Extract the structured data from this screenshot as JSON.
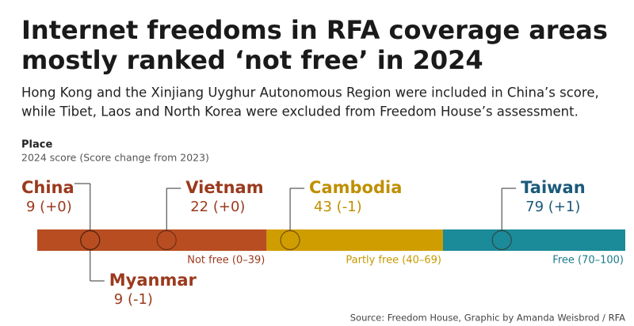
{
  "chart_data": {
    "type": "scale",
    "title": [
      "Internet freedoms in RFA coverage areas",
      "mostly ranked ‘not free’ in 2024"
    ],
    "subtitle": [
      "Hong Kong and the Xinjiang Uyghur Autonomous Region were included in China’s score,",
      "while Tibet, Laos and North Korea were excluded from Freedom House’s assessment."
    ],
    "key_name": "Place",
    "key_value": "2024 score (Score change from 2023)",
    "xlim": [
      0,
      100
    ],
    "bands": [
      {
        "name": "Not free (0–39)",
        "end": 39,
        "color": "#b84d22",
        "text_color": "#9b3a1e"
      },
      {
        "name": "Partly free (40–69)",
        "end": 69,
        "color": "#d09d00",
        "text_color": "#c49a00"
      },
      {
        "name": "Free (70–100)",
        "end": 100,
        "color": "#1b8a99",
        "text_color": "#1b7a8a"
      }
    ],
    "categories": [
      "China",
      "Myanmar",
      "Vietnam",
      "Cambodia",
      "Taiwan"
    ],
    "values": [
      9,
      9,
      22,
      43,
      79
    ],
    "value_labels": [
      "9 (+0)",
      "9 (-1)",
      "22 (+0)",
      "43 (-1)",
      "79 (+1)"
    ],
    "colors": [
      "#9b3a1e",
      "#9b3a1e",
      "#9b3a1e",
      "#c08f00",
      "#1b5a7a"
    ],
    "source": "Source: Freedom House, Graphic by Amanda Weisbrod / RFA"
  }
}
